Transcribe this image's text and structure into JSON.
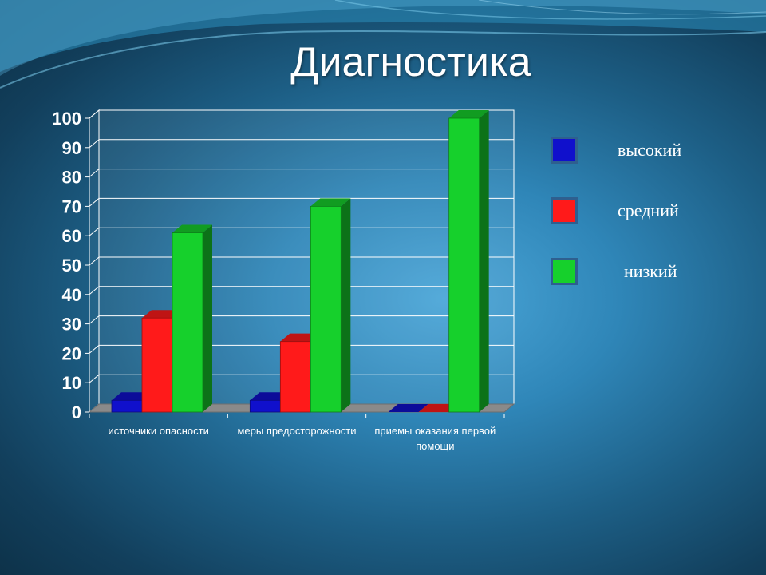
{
  "slide": {
    "title": "Диагностика"
  },
  "colors": {
    "высокий": "#1010cc",
    "средний": "#ff1a1a",
    "низкий": "#16d02c"
  },
  "chart_data": {
    "type": "bar",
    "title": "",
    "xlabel": "",
    "ylabel": "",
    "ylim": [
      0,
      100
    ],
    "yticks": [
      0,
      10,
      20,
      30,
      40,
      50,
      60,
      70,
      80,
      90,
      100
    ],
    "categories": [
      [
        "источники опасности"
      ],
      [
        "меры предосторожности"
      ],
      [
        "приемы оказания первой",
        "помощи"
      ]
    ],
    "series": [
      {
        "name": "высокий",
        "values": [
          4,
          4,
          0
        ]
      },
      {
        "name": "средний",
        "values": [
          32,
          24,
          0
        ]
      },
      {
        "name": "низкий",
        "values": [
          61,
          70,
          100
        ]
      }
    ],
    "legend_position": "right",
    "grid": true,
    "style": "3d"
  }
}
